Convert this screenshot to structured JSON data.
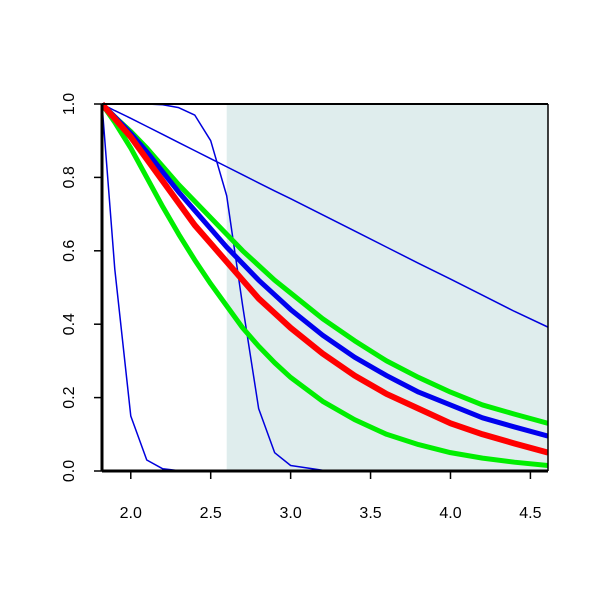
{
  "chart_data": {
    "type": "line",
    "x": [
      1.82,
      1.9,
      2.0,
      2.1,
      2.2,
      2.3,
      2.4,
      2.5,
      2.6,
      2.7,
      2.8,
      2.9,
      3.0,
      3.2,
      3.4,
      3.6,
      3.8,
      4.0,
      4.2,
      4.4,
      4.61
    ],
    "series": [
      {
        "color": "#0000dd",
        "values": [
          1,
          0.982,
          0.961,
          0.939,
          0.917,
          0.895,
          0.873,
          0.851,
          0.829,
          0.807,
          0.785,
          0.763,
          0.742,
          0.698,
          0.654,
          0.61,
          0.566,
          0.523,
          0.479,
          0.435,
          0.392
        ]
      },
      {
        "color": "#0000dd",
        "values": [
          1,
          0.55,
          0.15,
          0.03,
          0.006,
          0.001,
          0,
          0,
          0,
          0,
          0,
          0,
          0,
          0,
          0,
          0,
          0,
          0,
          0,
          0,
          0
        ]
      },
      {
        "color": "#0000dd",
        "values": [
          1,
          1,
          1,
          1,
          0.998,
          0.99,
          0.97,
          0.9,
          0.75,
          0.45,
          0.17,
          0.05,
          0.015,
          0.002,
          0,
          0,
          0,
          0,
          0,
          0,
          0
        ]
      },
      {
        "color": "#00ee00",
        "values": [
          1,
          0.965,
          0.925,
          0.88,
          0.83,
          0.78,
          0.735,
          0.69,
          0.645,
          0.6,
          0.56,
          0.52,
          0.485,
          0.415,
          0.355,
          0.3,
          0.255,
          0.215,
          0.18,
          0.155,
          0.13
        ]
      },
      {
        "color": "#00ee00",
        "values": [
          1,
          0.95,
          0.88,
          0.8,
          0.72,
          0.645,
          0.575,
          0.51,
          0.45,
          0.39,
          0.34,
          0.295,
          0.255,
          0.19,
          0.14,
          0.1,
          0.072,
          0.05,
          0.035,
          0.024,
          0.015
        ]
      },
      {
        "color": "#0000ee",
        "values": [
          1,
          0.965,
          0.92,
          0.87,
          0.815,
          0.76,
          0.71,
          0.66,
          0.61,
          0.565,
          0.52,
          0.48,
          0.44,
          0.37,
          0.31,
          0.26,
          0.215,
          0.18,
          0.145,
          0.12,
          0.095
        ]
      },
      {
        "color": "#ff0000",
        "values": [
          1,
          0.96,
          0.91,
          0.85,
          0.79,
          0.73,
          0.67,
          0.62,
          0.57,
          0.52,
          0.47,
          0.43,
          0.39,
          0.32,
          0.26,
          0.21,
          0.17,
          0.13,
          0.1,
          0.075,
          0.05
        ]
      }
    ],
    "highlight": {
      "xmin": 2.6,
      "xmax": 4.61,
      "color": "#dfeded"
    },
    "xlim": [
      1.82,
      4.61
    ],
    "ylim": [
      0,
      1
    ],
    "xticks": [
      {
        "value": 2.0,
        "label": "2.0"
      },
      2.5,
      {
        "value": 3.0,
        "label": "3.0"
      },
      3.5,
      {
        "value": 4.0,
        "label": "4.0"
      },
      4.5
    ],
    "yticks": [
      {
        "value": 0.0,
        "label": "0.0"
      },
      0.2,
      0.4,
      0.6,
      0.8,
      {
        "value": 1.0,
        "label": "1.0"
      }
    ],
    "grid": false
  }
}
